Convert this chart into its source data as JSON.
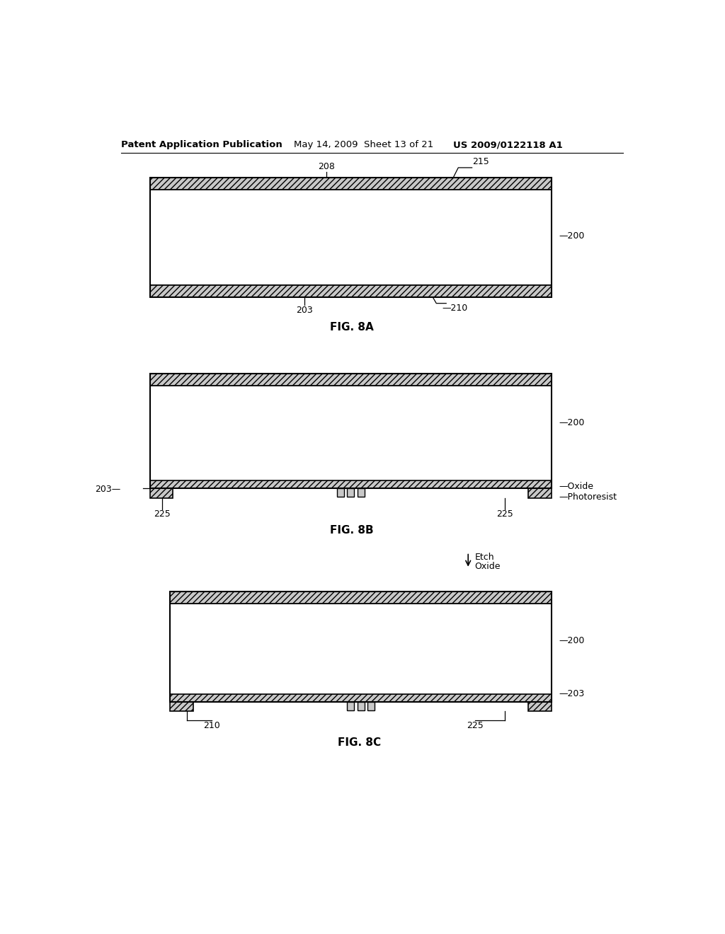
{
  "bg_color": "#ffffff",
  "header_text": "Patent Application Publication",
  "header_date": "May 14, 2009  Sheet 13 of 21",
  "header_patent": "US 2009/0122118 A1",
  "fig_labels": [
    "FIG. 8A",
    "FIG. 8B",
    "FIG. 8C"
  ],
  "hatch_pattern": "////",
  "line_color": "#000000",
  "hatch_face": "#c8c8c8"
}
